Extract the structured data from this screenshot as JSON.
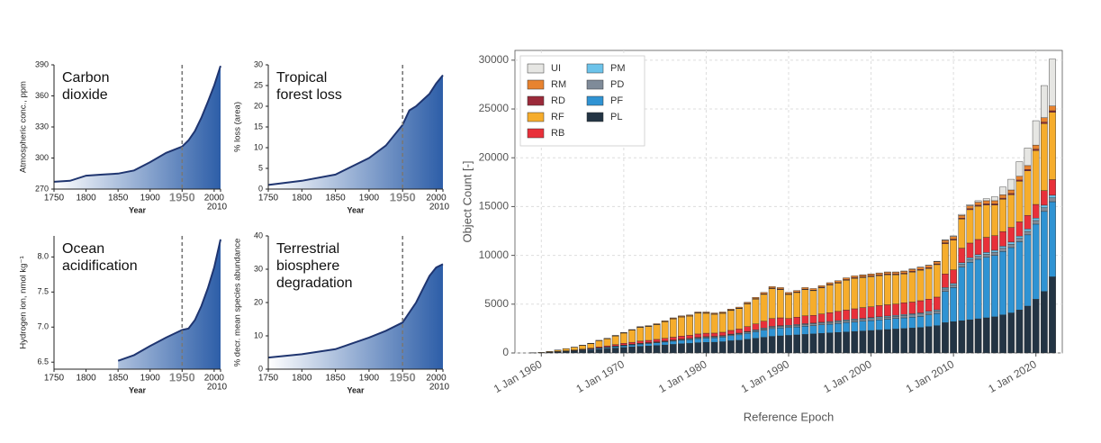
{
  "chart_data": [
    {
      "type": "area",
      "title": [
        "Carbon",
        "dioxide"
      ],
      "ylabel": "Atmospheric conc., ppm",
      "xlabel": "Year",
      "x": [
        1750,
        1775,
        1800,
        1825,
        1850,
        1875,
        1900,
        1925,
        1950,
        1960,
        1970,
        1980,
        1990,
        2000,
        2010
      ],
      "values": [
        277,
        278,
        283,
        284,
        285,
        288,
        296,
        305,
        311,
        317,
        326,
        339,
        354,
        370,
        389
      ],
      "xlim": [
        1750,
        2010
      ],
      "ylim": [
        270,
        390
      ],
      "xticks": [
        1750,
        1800,
        1850,
        1900,
        1950,
        2000,
        2010
      ],
      "yticks": [
        270,
        300,
        330,
        360,
        390
      ],
      "highlight_x": 1950,
      "color": "#2d5ea8",
      "line_color": "#1f3570"
    },
    {
      "type": "area",
      "title": [
        "Tropical",
        "forest loss"
      ],
      "ylabel": "% loss (area)",
      "xlabel": "Year",
      "x": [
        1750,
        1800,
        1850,
        1900,
        1925,
        1950,
        1960,
        1970,
        1980,
        1990,
        2000,
        2010
      ],
      "values": [
        1,
        2,
        3.5,
        7.5,
        10.5,
        15.5,
        19,
        20,
        21.5,
        23,
        25.5,
        27.5
      ],
      "xlim": [
        1750,
        2010
      ],
      "ylim": [
        0,
        30
      ],
      "xticks": [
        1750,
        1800,
        1850,
        1900,
        1950,
        2000,
        2010
      ],
      "yticks": [
        0,
        5,
        10,
        15,
        20,
        25,
        30
      ],
      "highlight_x": 1950,
      "color": "#2d5ea8",
      "line_color": "#1f3570"
    },
    {
      "type": "area",
      "title": [
        "Ocean",
        "acidification"
      ],
      "ylabel": "Hydrogen ion, nmol kg⁻¹",
      "xlabel": "Year",
      "x": [
        1850,
        1875,
        1900,
        1925,
        1950,
        1960,
        1970,
        1980,
        1990,
        2000,
        2010
      ],
      "values": [
        6.52,
        6.6,
        6.73,
        6.85,
        6.96,
        6.98,
        7.1,
        7.3,
        7.55,
        7.85,
        8.25
      ],
      "xlim": [
        1750,
        2010
      ],
      "ylim": [
        6.4,
        8.3
      ],
      "xticks": [
        1750,
        1800,
        1850,
        1900,
        1950,
        2000,
        2010
      ],
      "yticks": [
        6.5,
        {
          "value": 7,
          "label": "7.0"
        },
        7.5,
        {
          "value": 8,
          "label": "8.0"
        }
      ],
      "highlight_x": 1950,
      "color": "#2d5ea8",
      "line_color": "#1f3570"
    },
    {
      "type": "area",
      "title": [
        "Terrestrial",
        "biosphere",
        "degradation"
      ],
      "ylabel": "% decr. mean species abundance",
      "xlabel": "Year",
      "x": [
        1750,
        1800,
        1850,
        1900,
        1925,
        1950,
        1960,
        1970,
        1980,
        1990,
        2000,
        2010
      ],
      "values": [
        3.5,
        4.5,
        6,
        9.5,
        11.5,
        14,
        17,
        20,
        24,
        28,
        30.5,
        31.5
      ],
      "xlim": [
        1750,
        2010
      ],
      "ylim": [
        0,
        40
      ],
      "xticks": [
        1750,
        1800,
        1850,
        1900,
        1950,
        2000,
        2010
      ],
      "yticks": [
        0,
        10,
        20,
        30,
        40
      ],
      "highlight_x": 1950,
      "color": "#2d5ea8",
      "line_color": "#1f3570"
    },
    {
      "type": "stacked_bar",
      "xlabel": "Reference Epoch",
      "ylabel": "Object Count [-]",
      "grid": true,
      "legend": "upper left",
      "x": [
        1959,
        1960,
        1961,
        1962,
        1963,
        1964,
        1965,
        1966,
        1967,
        1968,
        1969,
        1970,
        1971,
        1972,
        1973,
        1974,
        1975,
        1976,
        1977,
        1978,
        1979,
        1980,
        1981,
        1982,
        1983,
        1984,
        1985,
        1986,
        1987,
        1988,
        1989,
        1990,
        1991,
        1992,
        1993,
        1994,
        1995,
        1996,
        1997,
        1998,
        1999,
        2000,
        2001,
        2002,
        2003,
        2004,
        2005,
        2006,
        2007,
        2008,
        2009,
        2010,
        2011,
        2012,
        2013,
        2014,
        2015,
        2016,
        2017,
        2018,
        2019,
        2020,
        2021,
        2022
      ],
      "xlim": [
        1956.8,
        2023.2
      ],
      "ylim": [
        0,
        31000
      ],
      "xticks": [
        {
          "value": 1960,
          "label": "1 Jan 1960"
        },
        {
          "value": 1970,
          "label": "1 Jan 1970"
        },
        {
          "value": 1980,
          "label": "1 Jan 1980"
        },
        {
          "value": 1990,
          "label": "1 Jan 1990"
        },
        {
          "value": 2000,
          "label": "1 Jan 2000"
        },
        {
          "value": 2010,
          "label": "1 Jan 2010"
        },
        {
          "value": 2020,
          "label": "1 Jan 2020"
        }
      ],
      "yticks": [
        0,
        5000,
        10000,
        15000,
        20000,
        25000,
        30000
      ],
      "series": [
        {
          "name": "UI",
          "color": "#e6e6e3",
          "values": [
            0,
            0,
            0,
            0,
            0,
            0,
            0,
            0,
            0,
            0,
            0,
            0,
            0,
            0,
            0,
            0,
            0,
            0,
            0,
            0,
            0,
            0,
            0,
            0,
            0,
            0,
            0,
            0,
            0,
            0,
            0,
            0,
            0,
            0,
            0,
            0,
            0,
            0,
            0,
            0,
            10,
            10,
            10,
            10,
            10,
            20,
            20,
            20,
            30,
            40,
            60,
            80,
            100,
            120,
            150,
            200,
            400,
            800,
            1100,
            1500,
            1800,
            2500,
            3300,
            4800
          ]
        },
        {
          "name": "RM",
          "color": "#e8832f",
          "values": [
            0,
            0,
            5,
            10,
            10,
            15,
            20,
            25,
            30,
            35,
            40,
            45,
            50,
            55,
            60,
            65,
            70,
            75,
            80,
            85,
            90,
            95,
            95,
            100,
            105,
            110,
            120,
            130,
            140,
            150,
            150,
            150,
            155,
            160,
            160,
            165,
            170,
            175,
            180,
            185,
            190,
            195,
            200,
            200,
            205,
            210,
            215,
            220,
            225,
            230,
            250,
            260,
            280,
            300,
            310,
            320,
            330,
            340,
            360,
            380,
            400,
            420,
            450,
            480
          ]
        },
        {
          "name": "RD",
          "color": "#9b2a3a",
          "values": [
            0,
            0,
            0,
            5,
            5,
            10,
            10,
            15,
            15,
            20,
            20,
            20,
            25,
            25,
            25,
            30,
            30,
            30,
            35,
            35,
            35,
            40,
            40,
            40,
            45,
            45,
            50,
            50,
            55,
            55,
            55,
            55,
            55,
            60,
            60,
            60,
            60,
            65,
            65,
            65,
            65,
            70,
            70,
            70,
            70,
            75,
            75,
            75,
            80,
            80,
            90,
            90,
            100,
            100,
            100,
            110,
            110,
            110,
            120,
            120,
            130,
            130,
            140,
            150
          ]
        },
        {
          "name": "RF",
          "color": "#f6ad2c",
          "values": [
            10,
            30,
            60,
            130,
            210,
            270,
            370,
            460,
            630,
            720,
            880,
            1045,
            1230,
            1405,
            1425,
            1515,
            1705,
            1880,
            1955,
            1970,
            2130,
            2040,
            1930,
            1935,
            2040,
            2095,
            2330,
            2545,
            2755,
            3070,
            2895,
            2460,
            2525,
            2680,
            2525,
            2680,
            2850,
            2900,
            3060,
            3125,
            3085,
            3095,
            3065,
            3085,
            3005,
            2955,
            3075,
            3130,
            3150,
            3325,
            3100,
            3050,
            2980,
            3420,
            3410,
            3320,
            3140,
            3310,
            3360,
            4170,
            4570,
            5530,
            6870,
            6910
          ]
        },
        {
          "name": "RB",
          "color": "#e8303a",
          "values": [
            0,
            0,
            10,
            20,
            30,
            40,
            60,
            80,
            100,
            120,
            150,
            180,
            200,
            220,
            230,
            250,
            270,
            290,
            310,
            320,
            340,
            350,
            330,
            340,
            380,
            420,
            500,
            600,
            700,
            800,
            800,
            700,
            750,
            800,
            800,
            850,
            900,
            950,
            1000,
            1050,
            1100,
            1100,
            1150,
            1150,
            1150,
            1200,
            1200,
            1250,
            1250,
            1300,
            1400,
            1400,
            1500,
            1500,
            1550,
            1550,
            1500,
            1500,
            1500,
            1450,
            1400,
            1400,
            1500,
            1600
          ]
        },
        {
          "name": "PM",
          "color": "#6cc3ea",
          "values": [
            0,
            0,
            0,
            5,
            5,
            10,
            10,
            15,
            15,
            20,
            20,
            25,
            25,
            30,
            30,
            35,
            35,
            40,
            40,
            45,
            45,
            50,
            50,
            55,
            55,
            60,
            60,
            65,
            70,
            75,
            75,
            75,
            80,
            80,
            80,
            85,
            85,
            90,
            90,
            95,
            95,
            100,
            100,
            105,
            105,
            110,
            110,
            115,
            120,
            125,
            140,
            150,
            160,
            170,
            180,
            190,
            200,
            210,
            220,
            230,
            240,
            250,
            260,
            270
          ]
        },
        {
          "name": "PD",
          "color": "#7f8b99",
          "values": [
            0,
            0,
            5,
            10,
            10,
            15,
            20,
            25,
            30,
            35,
            40,
            45,
            50,
            55,
            60,
            65,
            70,
            75,
            80,
            85,
            90,
            95,
            95,
            100,
            105,
            110,
            120,
            130,
            140,
            150,
            155,
            160,
            165,
            170,
            175,
            180,
            185,
            190,
            195,
            200,
            205,
            210,
            215,
            220,
            225,
            230,
            235,
            240,
            245,
            250,
            260,
            270,
            280,
            290,
            300,
            310,
            320,
            330,
            340,
            350,
            360,
            370,
            380,
            390
          ]
        },
        {
          "name": "PF",
          "color": "#2f93d3",
          "values": [
            0,
            0,
            10,
            20,
            30,
            40,
            60,
            80,
            100,
            120,
            150,
            180,
            200,
            230,
            250,
            280,
            300,
            330,
            360,
            380,
            420,
            450,
            460,
            480,
            520,
            560,
            620,
            680,
            740,
            800,
            820,
            800,
            820,
            850,
            850,
            880,
            900,
            930,
            960,
            980,
            1000,
            1020,
            1040,
            1060,
            1080,
            1100,
            1120,
            1150,
            1200,
            1250,
            3200,
            3500,
            5500,
            5900,
            6100,
            6200,
            6300,
            6500,
            6700,
            7000,
            7300,
            7700,
            8200,
            7700
          ]
        },
        {
          "name": "PL",
          "color": "#233444",
          "values": [
            10,
            30,
            60,
            100,
            150,
            200,
            250,
            300,
            380,
            430,
            500,
            560,
            620,
            680,
            720,
            760,
            820,
            880,
            940,
            980,
            1050,
            1080,
            1100,
            1150,
            1250,
            1300,
            1400,
            1500,
            1600,
            1700,
            1750,
            1800,
            1850,
            1900,
            1950,
            2000,
            2050,
            2100,
            2150,
            2200,
            2250,
            2300,
            2350,
            2400,
            2450,
            2500,
            2550,
            2600,
            2700,
            2800,
            3100,
            3200,
            3300,
            3400,
            3500,
            3600,
            3700,
            3900,
            4100,
            4400,
            4800,
            5500,
            6300,
            7800
          ]
        }
      ]
    }
  ]
}
